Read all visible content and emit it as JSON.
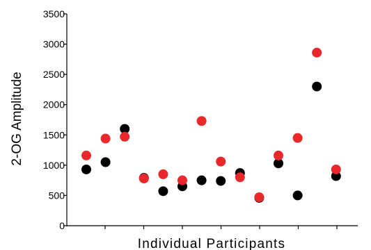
{
  "chart_data": {
    "type": "scatter",
    "xlabel": "Individual Participants",
    "ylabel": "2-OG Amplitude",
    "ylim": [
      0,
      3500
    ],
    "yticks": [
      0,
      500,
      1000,
      1500,
      2000,
      2500,
      3000,
      3500
    ],
    "x": [
      1,
      2,
      3,
      4,
      5,
      6,
      7,
      8,
      9,
      10,
      11,
      12,
      13,
      14
    ],
    "series": [
      {
        "color": "#000000",
        "values": [
          930,
          1050,
          1600,
          790,
          570,
          650,
          750,
          740,
          870,
          460,
          1030,
          500,
          2300,
          820
        ]
      },
      {
        "color": "#e8282b",
        "values": [
          1160,
          1440,
          1470,
          780,
          850,
          750,
          1730,
          1060,
          800,
          470,
          1160,
          1450,
          2860,
          930
        ]
      }
    ],
    "grid": false,
    "legend": "none"
  }
}
